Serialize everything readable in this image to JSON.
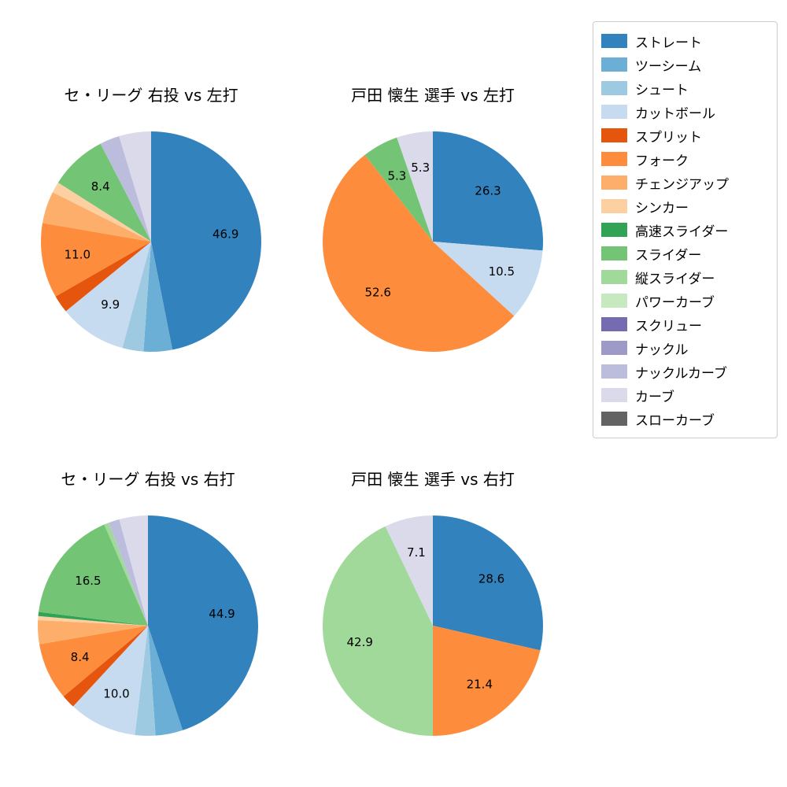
{
  "figure": {
    "background_color": "#ffffff",
    "text_color": "#000000"
  },
  "legend": {
    "position": "upper right outside",
    "items": [
      {
        "label": "ストレート",
        "color": "#3182bd"
      },
      {
        "label": "ツーシーム",
        "color": "#6baed6"
      },
      {
        "label": "シュート",
        "color": "#9ecae1"
      },
      {
        "label": "カットボール",
        "color": "#c6dbef"
      },
      {
        "label": "スプリット",
        "color": "#e6550d"
      },
      {
        "label": "フォーク",
        "color": "#fd8d3c"
      },
      {
        "label": "チェンジアップ",
        "color": "#fdae6b"
      },
      {
        "label": "シンカー",
        "color": "#fdd0a2"
      },
      {
        "label": "高速スライダー",
        "color": "#31a354"
      },
      {
        "label": "スライダー",
        "color": "#74c476"
      },
      {
        "label": "縦スライダー",
        "color": "#a1d99b"
      },
      {
        "label": "パワーカーブ",
        "color": "#c7e9c0"
      },
      {
        "label": "スクリュー",
        "color": "#756bb1"
      },
      {
        "label": "ナックル",
        "color": "#9e9ac8"
      },
      {
        "label": "ナックルカーブ",
        "color": "#bcbddc"
      },
      {
        "label": "カーブ",
        "color": "#dadaeb"
      },
      {
        "label": "スローカーブ",
        "color": "#636363"
      }
    ]
  },
  "chart_data": [
    {
      "type": "pie",
      "title": "セ・リーグ 右投 vs 左打",
      "start_angle_deg": 90,
      "direction": "clockwise",
      "label_threshold": 5.0,
      "units": "percent",
      "slices": [
        {
          "label": "ストレート",
          "value": 46.9
        },
        {
          "label": "ツーシーム",
          "value": 4.2
        },
        {
          "label": "シュート",
          "value": 3.1
        },
        {
          "label": "カットボール",
          "value": 9.9
        },
        {
          "label": "スプリット",
          "value": 2.6
        },
        {
          "label": "フォーク",
          "value": 11.0
        },
        {
          "label": "チェンジアップ",
          "value": 4.7
        },
        {
          "label": "シンカー",
          "value": 1.6
        },
        {
          "label": "スライダー",
          "value": 8.4
        },
        {
          "label": "ナックルカーブ",
          "value": 2.9
        },
        {
          "label": "カーブ",
          "value": 4.7
        }
      ]
    },
    {
      "type": "pie",
      "title": "戸田 懐生 選手 vs 左打",
      "start_angle_deg": 90,
      "direction": "clockwise",
      "label_threshold": 5.0,
      "units": "percent",
      "slices": [
        {
          "label": "ストレート",
          "value": 26.3
        },
        {
          "label": "カットボール",
          "value": 10.5
        },
        {
          "label": "フォーク",
          "value": 52.6
        },
        {
          "label": "スライダー",
          "value": 5.3
        },
        {
          "label": "カーブ",
          "value": 5.3
        }
      ]
    },
    {
      "type": "pie",
      "title": "セ・リーグ 右投 vs 右打",
      "start_angle_deg": 90,
      "direction": "clockwise",
      "label_threshold": 5.0,
      "units": "percent",
      "slices": [
        {
          "label": "ストレート",
          "value": 44.9
        },
        {
          "label": "ツーシーム",
          "value": 4.0
        },
        {
          "label": "シュート",
          "value": 3.0
        },
        {
          "label": "カットボール",
          "value": 10.0
        },
        {
          "label": "スプリット",
          "value": 2.0
        },
        {
          "label": "フォーク",
          "value": 8.4
        },
        {
          "label": "チェンジアップ",
          "value": 3.5
        },
        {
          "label": "シンカー",
          "value": 0.6
        },
        {
          "label": "高速スライダー",
          "value": 0.6
        },
        {
          "label": "スライダー",
          "value": 16.5
        },
        {
          "label": "縦スライダー",
          "value": 0.7
        },
        {
          "label": "ナックルカーブ",
          "value": 1.6
        },
        {
          "label": "カーブ",
          "value": 4.2
        }
      ]
    },
    {
      "type": "pie",
      "title": "戸田 懐生 選手 vs 右打",
      "start_angle_deg": 90,
      "direction": "clockwise",
      "label_threshold": 5.0,
      "units": "percent",
      "slices": [
        {
          "label": "ストレート",
          "value": 28.6
        },
        {
          "label": "フォーク",
          "value": 21.4
        },
        {
          "label": "縦スライダー",
          "value": 42.9
        },
        {
          "label": "カーブ",
          "value": 7.1
        }
      ]
    }
  ]
}
